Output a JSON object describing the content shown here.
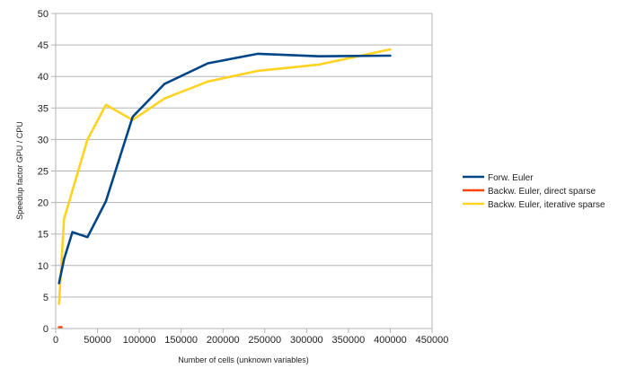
{
  "chart_data": {
    "type": "line",
    "xlabel": "Number of cells (unknown variables)",
    "ylabel": "Speedup factor GPU / CPU",
    "xlim": [
      0,
      450000
    ],
    "ylim": [
      0,
      50
    ],
    "x_ticks": [
      0,
      50000,
      100000,
      150000,
      200000,
      250000,
      300000,
      350000,
      400000,
      450000
    ],
    "y_ticks": [
      0,
      5,
      10,
      15,
      20,
      25,
      30,
      35,
      40,
      45,
      50
    ],
    "grid": "horizontal",
    "legend_position": "right",
    "series": [
      {
        "name": "Forw. Euler",
        "color": "#004586",
        "points": [
          {
            "x": 4000,
            "y": 7.2
          },
          {
            "x": 10000,
            "y": 11.0
          },
          {
            "x": 20000,
            "y": 15.3
          },
          {
            "x": 38000,
            "y": 14.5
          },
          {
            "x": 60000,
            "y": 20.2
          },
          {
            "x": 92000,
            "y": 33.6
          },
          {
            "x": 130000,
            "y": 38.8
          },
          {
            "x": 182000,
            "y": 42.1
          },
          {
            "x": 242000,
            "y": 43.6
          },
          {
            "x": 315000,
            "y": 43.2
          },
          {
            "x": 400000,
            "y": 43.3
          }
        ]
      },
      {
        "name": "Backw. Euler, direct sparse",
        "color": "#ff420e",
        "points": [
          {
            "x": 4000,
            "y": 0.2
          },
          {
            "x": 7000,
            "y": 0.2
          }
        ]
      },
      {
        "name": "Backw. Euler, iterative sparse",
        "color": "#ffd320",
        "points": [
          {
            "x": 4000,
            "y": 3.9
          },
          {
            "x": 10000,
            "y": 17.4
          },
          {
            "x": 38000,
            "y": 30.0
          },
          {
            "x": 60000,
            "y": 35.5
          },
          {
            "x": 92000,
            "y": 33.1
          },
          {
            "x": 130000,
            "y": 36.5
          },
          {
            "x": 182000,
            "y": 39.2
          },
          {
            "x": 242000,
            "y": 40.9
          },
          {
            "x": 315000,
            "y": 41.9
          },
          {
            "x": 400000,
            "y": 44.3
          }
        ]
      }
    ]
  }
}
